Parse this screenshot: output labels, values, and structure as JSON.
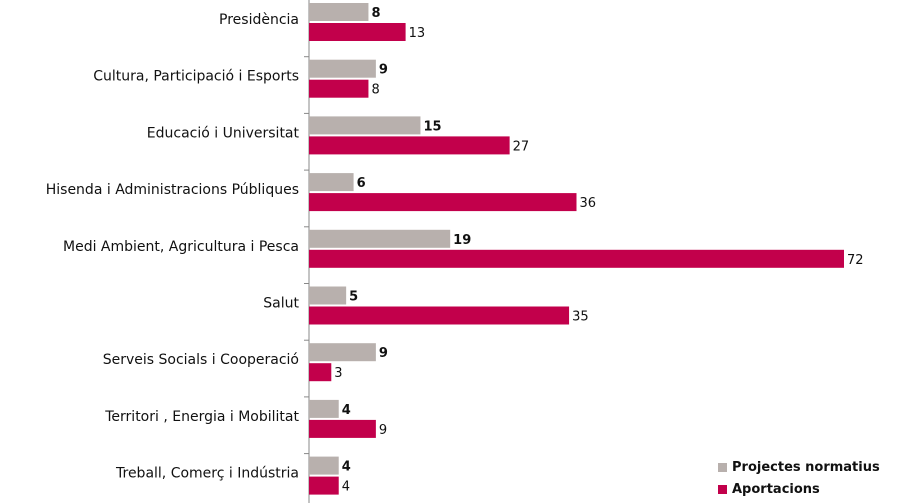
{
  "chart_data": {
    "type": "bar",
    "orientation": "horizontal",
    "categories": [
      "Presidència",
      "Cultura, Participació i Esports",
      "Educació i Universitat",
      "Hisenda i Administracions Públiques",
      "Medi Ambient, Agricultura i Pesca",
      "Salut",
      "Serveis Socials i Cooperació",
      "Territori , Energia i Mobilitat",
      "Treball, Comerç i Indústria"
    ],
    "series": [
      {
        "name": "Projectes normatius",
        "color": "#b8b0ad",
        "values": [
          8,
          9,
          15,
          6,
          19,
          5,
          9,
          4,
          4
        ]
      },
      {
        "name": "Aportacions",
        "color": "#c2004b",
        "values": [
          13,
          8,
          27,
          36,
          72,
          35,
          3,
          9,
          4
        ]
      }
    ],
    "xlim": [
      0,
      72
    ],
    "grid": false,
    "legend_position": "bottom-right"
  }
}
